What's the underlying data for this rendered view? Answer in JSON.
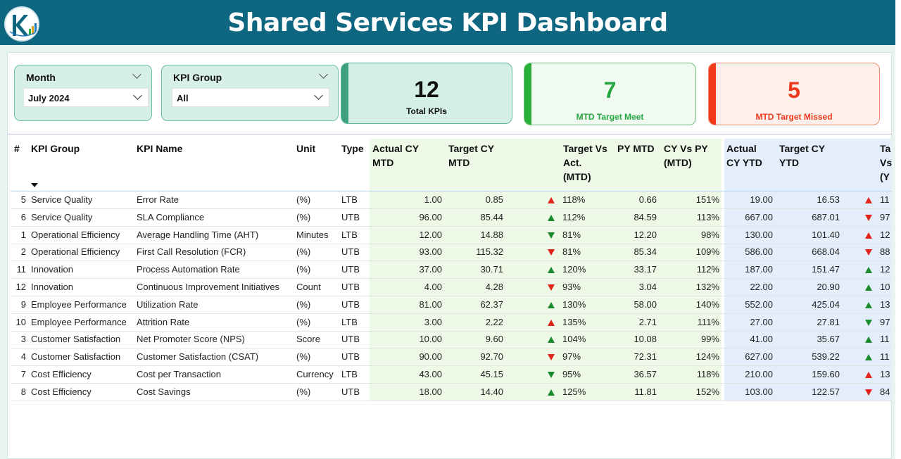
{
  "title": "Shared Services KPI Dashboard",
  "colors": {
    "header": "#0e6680",
    "up": "#1a8a2e",
    "down": "#e0241b",
    "meet": "#26a641",
    "missed": "#ee3a1c"
  },
  "filters": {
    "month": {
      "label": "Month",
      "value": "July 2024"
    },
    "kpi_group": {
      "label": "KPI Group",
      "value": "All"
    }
  },
  "cards": {
    "total": {
      "value": "12",
      "label": "Total KPIs"
    },
    "meet": {
      "value": "7",
      "label": "MTD Target Meet"
    },
    "missed": {
      "value": "5",
      "label": "MTD Target Missed"
    }
  },
  "table": {
    "columns": {
      "num": "#",
      "group": "KPI Group",
      "name": "KPI Name",
      "unit": "Unit",
      "type": "Type",
      "actual_mtd": [
        "Actual CY",
        "MTD"
      ],
      "target_mtd": [
        "Target CY",
        "MTD"
      ],
      "tva_mtd": [
        "Target Vs",
        "Act.",
        "(MTD)"
      ],
      "py_mtd": [
        "PY MTD"
      ],
      "cy_vs_py": [
        "CY Vs PY",
        "(MTD)"
      ],
      "actual_ytd": [
        "Actual",
        "CY YTD"
      ],
      "target_ytd": [
        "Target CY",
        "YTD"
      ],
      "tva_ytd_partial": [
        "Ta",
        "Vs",
        "(Y"
      ]
    },
    "rows": [
      {
        "num": "5",
        "group": "Service Quality",
        "name": "Error Rate",
        "unit": "(%)",
        "type": "LTB",
        "actual_mtd": "1.00",
        "target_mtd": "0.85",
        "mtd_icon": "up-red",
        "tva_mtd": "118%",
        "py_mtd": "0.66",
        "cy_vs_py": "151%",
        "actual_ytd": "19.00",
        "target_ytd": "16.53",
        "ytd_icon": "up-red",
        "tva_ytd": "11"
      },
      {
        "num": "6",
        "group": "Service Quality",
        "name": "SLA Compliance",
        "unit": "(%)",
        "type": "UTB",
        "actual_mtd": "96.00",
        "target_mtd": "85.44",
        "mtd_icon": "up-green",
        "tva_mtd": "112%",
        "py_mtd": "84.59",
        "cy_vs_py": "113%",
        "actual_ytd": "667.00",
        "target_ytd": "687.01",
        "ytd_icon": "down-red",
        "tva_ytd": "97"
      },
      {
        "num": "1",
        "group": "Operational Efficiency",
        "name": "Average Handling Time (AHT)",
        "unit": "Minutes",
        "type": "LTB",
        "actual_mtd": "12.00",
        "target_mtd": "14.88",
        "mtd_icon": "down-green",
        "tva_mtd": "81%",
        "py_mtd": "12.20",
        "cy_vs_py": "98%",
        "actual_ytd": "130.00",
        "target_ytd": "101.40",
        "ytd_icon": "up-red",
        "tva_ytd": "12"
      },
      {
        "num": "2",
        "group": "Operational Efficiency",
        "name": "First Call Resolution (FCR)",
        "unit": "(%)",
        "type": "UTB",
        "actual_mtd": "93.00",
        "target_mtd": "115.32",
        "mtd_icon": "down-red",
        "tva_mtd": "81%",
        "py_mtd": "85.34",
        "cy_vs_py": "109%",
        "actual_ytd": "586.00",
        "target_ytd": "668.04",
        "ytd_icon": "down-red",
        "tva_ytd": "88"
      },
      {
        "num": "11",
        "group": "Innovation",
        "name": "Process Automation Rate",
        "unit": "(%)",
        "type": "UTB",
        "actual_mtd": "37.00",
        "target_mtd": "30.71",
        "mtd_icon": "up-green",
        "tva_mtd": "120%",
        "py_mtd": "33.17",
        "cy_vs_py": "112%",
        "actual_ytd": "187.00",
        "target_ytd": "151.47",
        "ytd_icon": "up-green",
        "tva_ytd": "12"
      },
      {
        "num": "12",
        "group": "Innovation",
        "name": "Continuous Improvement Initiatives",
        "unit": "Count",
        "type": "UTB",
        "actual_mtd": "4.00",
        "target_mtd": "4.28",
        "mtd_icon": "down-red",
        "tva_mtd": "93%",
        "py_mtd": "3.04",
        "cy_vs_py": "132%",
        "actual_ytd": "22.00",
        "target_ytd": "20.90",
        "ytd_icon": "up-green",
        "tva_ytd": "10"
      },
      {
        "num": "9",
        "group": "Employee Performance",
        "name": "Utilization Rate",
        "unit": "(%)",
        "type": "UTB",
        "actual_mtd": "81.00",
        "target_mtd": "62.37",
        "mtd_icon": "up-green",
        "tva_mtd": "130%",
        "py_mtd": "58.00",
        "cy_vs_py": "140%",
        "actual_ytd": "552.00",
        "target_ytd": "425.04",
        "ytd_icon": "up-green",
        "tva_ytd": "13"
      },
      {
        "num": "10",
        "group": "Employee Performance",
        "name": "Attrition Rate",
        "unit": "(%)",
        "type": "LTB",
        "actual_mtd": "3.00",
        "target_mtd": "2.22",
        "mtd_icon": "up-red",
        "tva_mtd": "135%",
        "py_mtd": "2.71",
        "cy_vs_py": "111%",
        "actual_ytd": "27.00",
        "target_ytd": "27.81",
        "ytd_icon": "down-green",
        "tva_ytd": "97"
      },
      {
        "num": "3",
        "group": "Customer Satisfaction",
        "name": "Net Promoter Score (NPS)",
        "unit": "Score",
        "type": "UTB",
        "actual_mtd": "10.00",
        "target_mtd": "9.60",
        "mtd_icon": "up-green",
        "tva_mtd": "104%",
        "py_mtd": "10.08",
        "cy_vs_py": "99%",
        "actual_ytd": "41.00",
        "target_ytd": "35.67",
        "ytd_icon": "up-green",
        "tva_ytd": "11"
      },
      {
        "num": "4",
        "group": "Customer Satisfaction",
        "name": "Customer Satisfaction (CSAT)",
        "unit": "(%)",
        "type": "UTB",
        "actual_mtd": "90.00",
        "target_mtd": "92.70",
        "mtd_icon": "down-red",
        "tva_mtd": "97%",
        "py_mtd": "72.31",
        "cy_vs_py": "124%",
        "actual_ytd": "627.00",
        "target_ytd": "539.22",
        "ytd_icon": "up-green",
        "tva_ytd": "11"
      },
      {
        "num": "7",
        "group": "Cost Efficiency",
        "name": "Cost per Transaction",
        "unit": "Currency",
        "type": "LTB",
        "actual_mtd": "43.00",
        "target_mtd": "45.15",
        "mtd_icon": "down-green",
        "tva_mtd": "95%",
        "py_mtd": "36.57",
        "cy_vs_py": "118%",
        "actual_ytd": "210.00",
        "target_ytd": "159.60",
        "ytd_icon": "up-red",
        "tva_ytd": "13"
      },
      {
        "num": "8",
        "group": "Cost Efficiency",
        "name": "Cost Savings",
        "unit": "(%)",
        "type": "UTB",
        "actual_mtd": "18.00",
        "target_mtd": "14.40",
        "mtd_icon": "up-green",
        "tva_mtd": "125%",
        "py_mtd": "11.81",
        "cy_vs_py": "152%",
        "actual_ytd": "103.00",
        "target_ytd": "122.57",
        "ytd_icon": "down-red",
        "tva_ytd": "84"
      }
    ]
  }
}
